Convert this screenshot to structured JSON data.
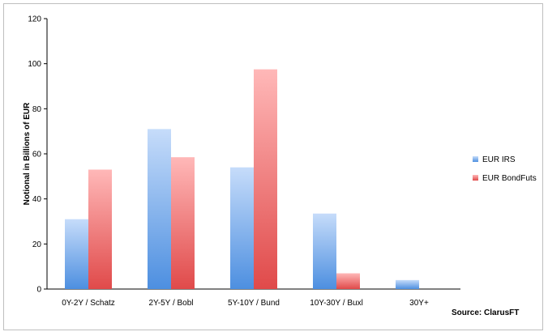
{
  "chart_data": {
    "type": "bar",
    "categories": [
      "0Y-2Y / Schatz",
      "2Y-5Y / Bobl",
      "5Y-10Y / Bund",
      "10Y-30Y / Buxl",
      "30Y+"
    ],
    "series": [
      {
        "name": "EUR IRS",
        "values": [
          31,
          71,
          54,
          33.5,
          4
        ],
        "color": "#7fb2ef"
      },
      {
        "name": "EUR BondFuts",
        "values": [
          53,
          58.5,
          97.5,
          7,
          0
        ],
        "color": "#f08a8a"
      }
    ],
    "ylabel": "Notional in Billions of EUR",
    "ylim": [
      0,
      120
    ],
    "yticks": [
      0,
      20,
      40,
      60,
      80,
      100,
      120
    ],
    "legend_position": "right",
    "source": "Source: ClarusFT"
  }
}
